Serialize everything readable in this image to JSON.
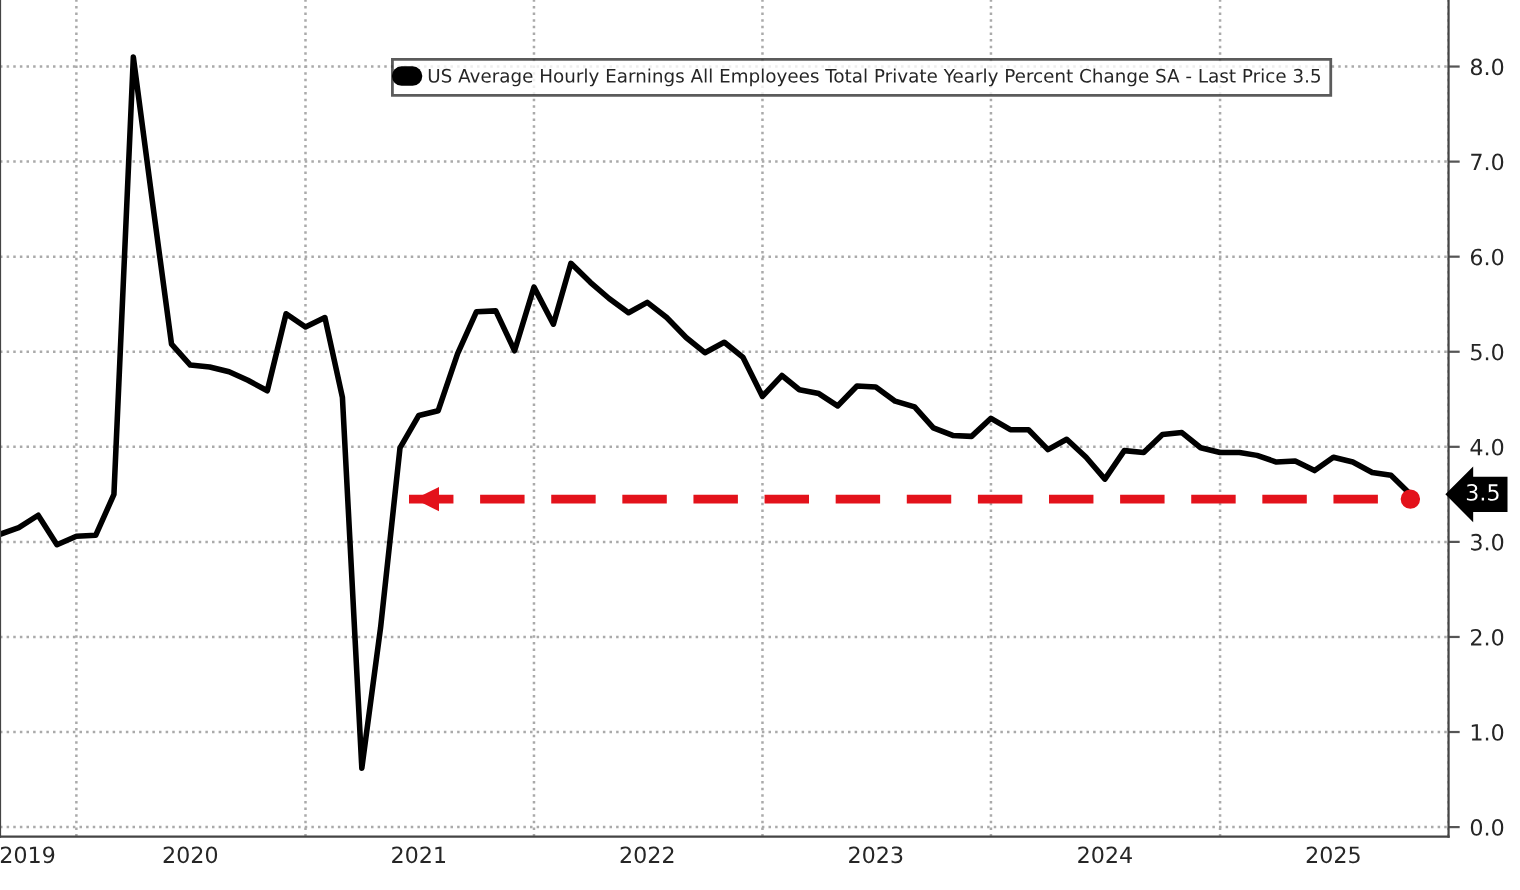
{
  "chart_data": {
    "type": "line",
    "x": [
      "2019-09",
      "2019-10",
      "2019-11",
      "2019-12",
      "2020-01",
      "2020-02",
      "2020-03",
      "2020-04",
      "2020-05",
      "2020-06",
      "2020-07",
      "2020-08",
      "2020-09",
      "2020-10",
      "2020-11",
      "2020-12",
      "2021-01",
      "2021-02",
      "2021-03",
      "2021-04",
      "2021-05",
      "2021-06",
      "2021-07",
      "2021-08",
      "2021-09",
      "2021-10",
      "2021-11",
      "2021-12",
      "2022-01",
      "2022-02",
      "2022-03",
      "2022-04",
      "2022-05",
      "2022-06",
      "2022-07",
      "2022-08",
      "2022-09",
      "2022-10",
      "2022-11",
      "2022-12",
      "2023-01",
      "2023-02",
      "2023-03",
      "2023-04",
      "2023-05",
      "2023-06",
      "2023-07",
      "2023-08",
      "2023-09",
      "2023-10",
      "2023-11",
      "2023-12",
      "2024-01",
      "2024-02",
      "2024-03",
      "2024-04",
      "2024-05",
      "2024-06",
      "2024-07",
      "2024-08",
      "2024-09",
      "2024-10",
      "2024-11",
      "2024-12",
      "2025-01",
      "2025-02",
      "2025-03",
      "2025-04",
      "2025-05",
      "2025-06",
      "2025-07",
      "2025-08",
      "2025-09",
      "2025-10",
      "2025-11"
    ],
    "series": [
      {
        "name": "US Average Hourly Earnings All Employees Total Private Yearly Percent Change SA - Last Price 3.5",
        "color": "#000000",
        "values": [
          3.08,
          3.15,
          3.28,
          2.97,
          3.06,
          3.07,
          3.5,
          8.1,
          6.6,
          5.08,
          4.86,
          4.84,
          4.79,
          4.7,
          4.59,
          5.4,
          5.26,
          5.36,
          4.52,
          0.62,
          2.1,
          3.99,
          4.33,
          4.38,
          4.98,
          5.42,
          5.43,
          5.01,
          5.68,
          5.29,
          5.93,
          5.73,
          5.56,
          5.41,
          5.52,
          5.36,
          5.15,
          4.99,
          5.1,
          4.94,
          4.53,
          4.75,
          4.6,
          4.56,
          4.43,
          4.64,
          4.63,
          4.48,
          4.42,
          4.2,
          4.12,
          4.11,
          4.3,
          4.18,
          4.18,
          3.97,
          4.08,
          3.89,
          3.66,
          3.96,
          3.94,
          4.13,
          4.15,
          3.99,
          3.94,
          3.94,
          3.91,
          3.84,
          3.85,
          3.75,
          3.89,
          3.84,
          3.73,
          3.7,
          3.5
        ]
      }
    ],
    "xlim": [
      "2019-09-01",
      "2026-01-01"
    ],
    "xticks": [
      {
        "value": "2020-01-01",
        "label": null
      },
      {
        "value": "2021-01-01",
        "label": null
      },
      {
        "value": "2022-01-01",
        "label": null
      },
      {
        "value": "2023-01-01",
        "label": null
      },
      {
        "value": "2024-01-01",
        "label": null
      },
      {
        "value": "2025-01-01",
        "label": null
      },
      {
        "value": "2026-01-01",
        "label": null
      },
      {
        "value": "2019-10-15",
        "label": "2019"
      },
      {
        "value": "2020-07-01",
        "label": "2020"
      },
      {
        "value": "2021-07-01",
        "label": "2021"
      },
      {
        "value": "2022-07-01",
        "label": "2022"
      },
      {
        "value": "2023-07-01",
        "label": "2023"
      },
      {
        "value": "2024-07-01",
        "label": "2024"
      },
      {
        "value": "2025-07-01",
        "label": "2025"
      }
    ],
    "ylim": [
      -0.1,
      8.7
    ],
    "yticks": [
      {
        "value": 0,
        "label": "0.0"
      },
      {
        "value": 1,
        "label": "1.0"
      },
      {
        "value": 2,
        "label": "2.0"
      },
      {
        "value": 3,
        "label": "3.0"
      },
      {
        "value": 4,
        "label": "4.0"
      },
      {
        "value": 5,
        "label": "5.0"
      },
      {
        "value": 6,
        "label": "6.0"
      },
      {
        "value": 7,
        "label": "7.0"
      },
      {
        "value": 8,
        "label": "8.0"
      }
    ],
    "ref_lines": [
      {
        "axis": "y",
        "value": 3.45,
        "color": "#e3121b",
        "line_style": "dashed"
      }
    ],
    "annotations": [
      "3.5"
    ],
    "grid": true,
    "legend": "top right"
  }
}
